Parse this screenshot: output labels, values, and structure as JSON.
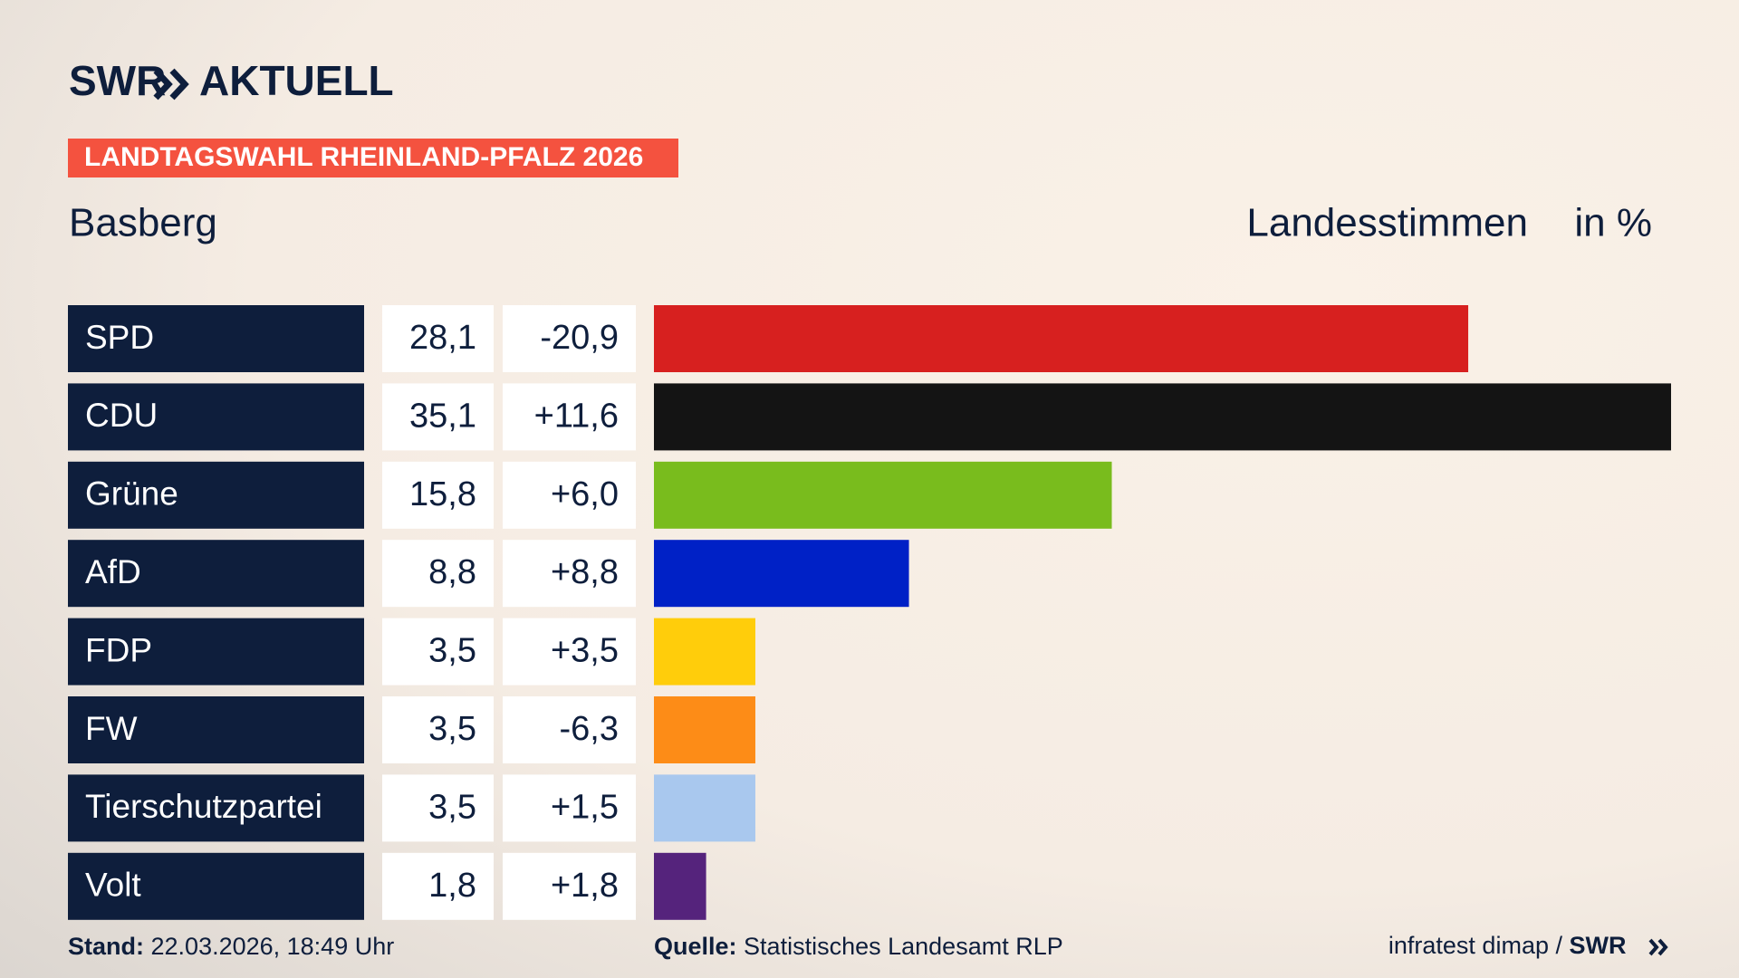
{
  "chart_data": {
    "type": "bar",
    "brand": "SWR",
    "brand_suffix": "AKTUELL",
    "kicker": "LANDTAGSWAHL RHEINLAND-PFALZ 2026",
    "title": "Basberg",
    "measure": "Landesstimmen",
    "unit": "in %",
    "categories": [
      "SPD",
      "CDU",
      "Grüne",
      "AfD",
      "FDP",
      "FW",
      "Tierschutzpartei",
      "Volt"
    ],
    "values": [
      28.1,
      35.1,
      15.8,
      8.8,
      3.5,
      3.5,
      3.5,
      1.8
    ],
    "value_labels": [
      "28,1",
      "35,1",
      "15,8",
      "8,8",
      "3,5",
      "3,5",
      "3,5",
      "1,8"
    ],
    "changes": [
      -20.9,
      11.6,
      6.0,
      8.8,
      3.5,
      -6.3,
      1.5,
      1.8
    ],
    "change_labels": [
      "-20,9",
      "+11,6",
      "+6,0",
      "+8,8",
      "+3,5",
      "-6,3",
      "+1,5",
      "+1,8"
    ],
    "colors": [
      "#d7201f",
      "#141414",
      "#79bc1d",
      "#0021c6",
      "#ffcd0b",
      "#fd8c17",
      "#a9c8ee",
      "#55237c"
    ],
    "footer": {
      "stand_label": "Stand:",
      "stand": "22.03.2026, 18:49 Uhr",
      "source_label": "Quelle:",
      "source": "Statistisches Landesamt RLP",
      "credit": "infratest dimap / ",
      "credit_brand": "SWR"
    }
  }
}
